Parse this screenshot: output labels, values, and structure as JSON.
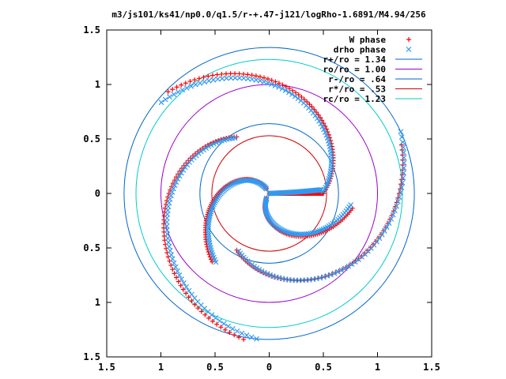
{
  "chart_data": {
    "type": "scatter",
    "title": "m3/js101/ks41/np0.0/q1.5/r-+.47-j121/logRho-1.6891/M4.94/256",
    "xlabel": "",
    "ylabel": "",
    "xlim": [
      -1.5,
      1.5
    ],
    "ylim": [
      -1.5,
      1.5
    ],
    "x_ticks": [
      -1.5,
      -1,
      -0.5,
      0,
      0.5,
      1,
      1.5
    ],
    "x_tick_labels": [
      "1.5",
      "1",
      "0.5",
      "0",
      "0.5",
      "1",
      "1.5"
    ],
    "y_ticks": [
      1.5,
      1,
      0.5,
      0,
      -0.5,
      -1,
      -1.5
    ],
    "y_tick_labels": [
      "1.5",
      "1",
      "0.5",
      "0",
      "0.5",
      "1",
      "1.5"
    ],
    "grid": false,
    "legend_position": "top-right",
    "series": [
      {
        "name": "W phase",
        "kind": "points",
        "marker": "plus",
        "color": "#ff0000",
        "arms": [
          {
            "r": [
              0,
              0.5
            ],
            "theta_deg_start": 0,
            "theta_deg_end": 0
          },
          {
            "r": [
              0.05,
              0.82
            ],
            "theta_deg_start": 120,
            "theta_deg_end": 230
          },
          {
            "r": [
              0.05,
              0.78
            ],
            "theta_deg_start": 240,
            "theta_deg_end": 350
          },
          {
            "r": [
              0.5,
              1.32
            ],
            "theta_deg_start": 0,
            "theta_deg_end": 135
          },
          {
            "r": [
              0.6,
              1.36
            ],
            "theta_deg_start": 120,
            "theta_deg_end": 260
          },
          {
            "r": [
              0.6,
              1.3
            ],
            "theta_deg_start": 240,
            "theta_deg_end": 380
          }
        ]
      },
      {
        "name": "drho phase",
        "kind": "points",
        "marker": "cross",
        "color": "#3399ee",
        "arms": [
          {
            "r": [
              0,
              0.48
            ],
            "theta_deg_start": 2,
            "theta_deg_end": 4
          },
          {
            "r": [
              0.05,
              0.8
            ],
            "theta_deg_start": 122,
            "theta_deg_end": 232
          },
          {
            "r": [
              0.05,
              0.76
            ],
            "theta_deg_start": 242,
            "theta_deg_end": 352
          },
          {
            "r": [
              0.5,
              1.3
            ],
            "theta_deg_start": 2,
            "theta_deg_end": 140
          },
          {
            "r": [
              0.6,
              1.34
            ],
            "theta_deg_start": 122,
            "theta_deg_end": 265
          },
          {
            "r": [
              0.6,
              1.34
            ],
            "theta_deg_start": 242,
            "theta_deg_end": 385
          }
        ]
      },
      {
        "name": "r+/ro = 1.34",
        "kind": "circle",
        "radius": 1.34,
        "color": "#0066cc"
      },
      {
        "name": "ro/ro = 1.00",
        "kind": "circle",
        "radius": 1.0,
        "color": "#9900cc"
      },
      {
        "name": "r-/ro = .64",
        "kind": "circle",
        "radius": 0.64,
        "color": "#0066cc"
      },
      {
        "name": "r*/ro = .53",
        "kind": "circle",
        "radius": 0.53,
        "color": "#cc0000"
      },
      {
        "name": "rc/ro = 1.23",
        "kind": "circle",
        "radius": 1.23,
        "color": "#00cccc"
      }
    ]
  }
}
